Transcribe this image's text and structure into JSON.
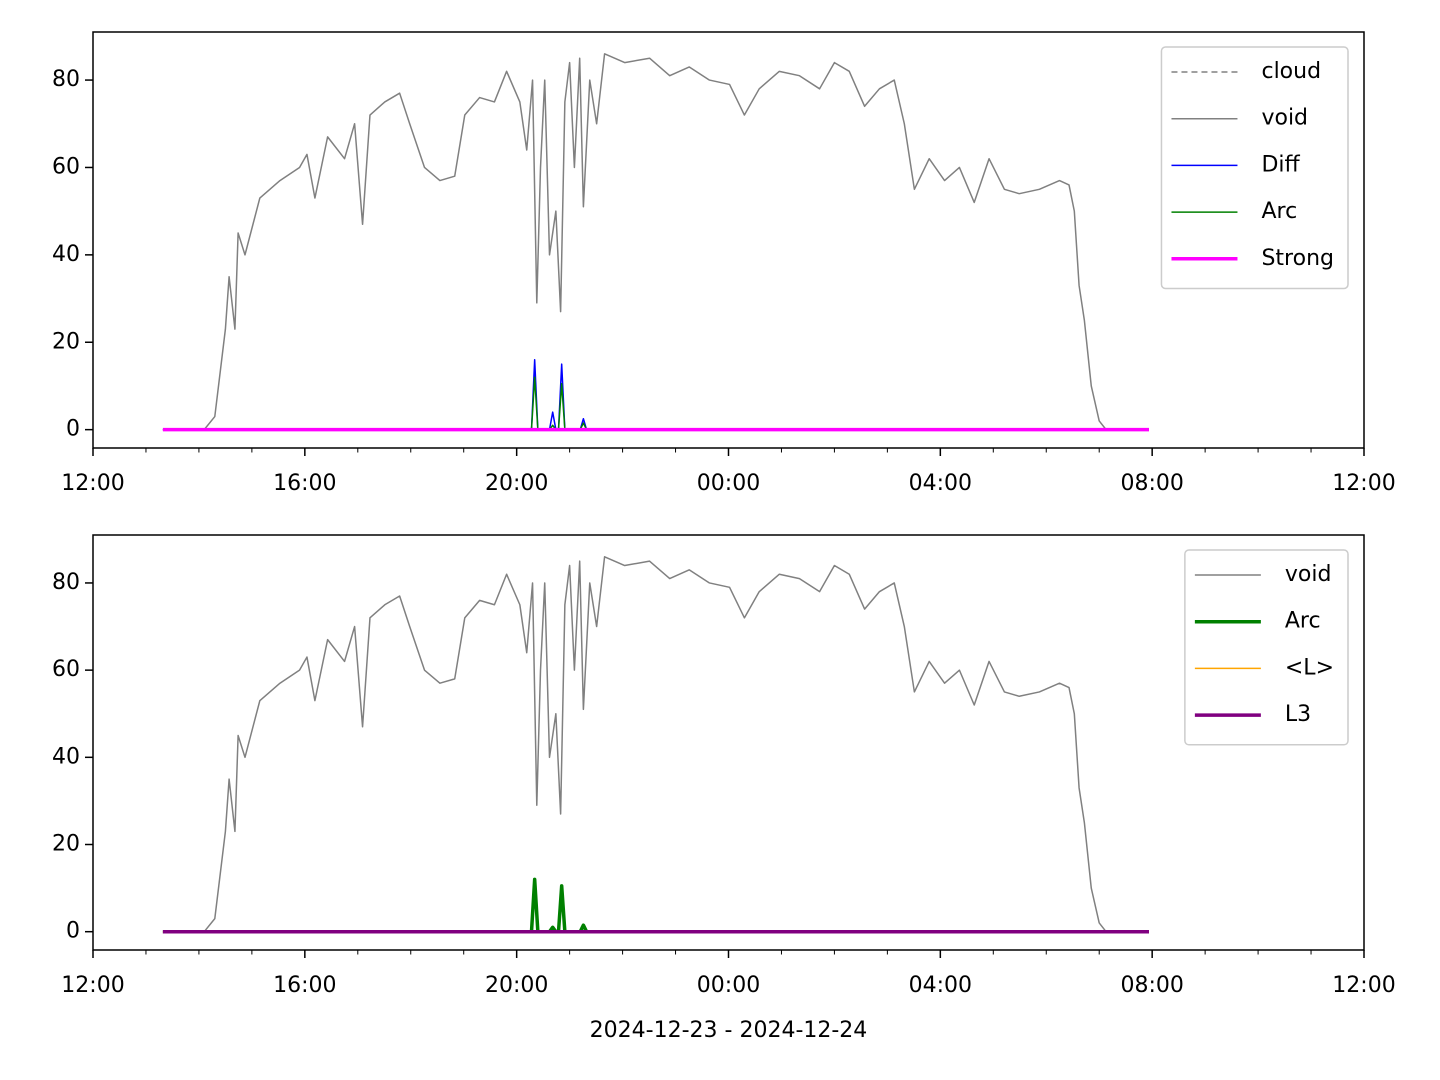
{
  "chart_data": [
    {
      "type": "line",
      "legend": "upper right",
      "xlim": [
        0,
        24
      ],
      "ylim": [
        -4.2,
        91
      ],
      "xticks": [
        {
          "value": 0,
          "label": "12:00"
        },
        {
          "value": 4,
          "label": "16:00"
        },
        {
          "value": 8,
          "label": "20:00"
        },
        {
          "value": 12,
          "label": "00:00"
        },
        {
          "value": 16,
          "label": "04:00"
        },
        {
          "value": 20,
          "label": "08:00"
        },
        {
          "value": 24,
          "label": "12:00"
        }
      ],
      "yticks": [
        0,
        20,
        40,
        60,
        80
      ],
      "series": [
        {
          "name": "cloud",
          "color": "#808080",
          "linestyle": "dashed",
          "linewidth": 1.5,
          "x": [],
          "values": []
        },
        {
          "name": "void",
          "color": "#808080",
          "linestyle": "solid",
          "linewidth": 1.5,
          "x": [
            1.32,
            2.1,
            2.3,
            2.5,
            2.57,
            2.68,
            2.74,
            2.87,
            3.15,
            3.53,
            3.9,
            4.04,
            4.19,
            4.43,
            4.75,
            4.94,
            5.09,
            5.23,
            5.51,
            5.79,
            5.98,
            6.26,
            6.55,
            6.83,
            7.02,
            7.3,
            7.58,
            7.81,
            8.06,
            8.19,
            8.3,
            8.38,
            8.45,
            8.53,
            8.62,
            8.74,
            8.83,
            8.91,
            9.0,
            9.09,
            9.19,
            9.26,
            9.38,
            9.51,
            9.66,
            10.04,
            10.51,
            10.89,
            11.26,
            11.64,
            12.02,
            12.3,
            12.58,
            12.96,
            13.34,
            13.72,
            14.0,
            14.28,
            14.57,
            14.85,
            15.13,
            15.32,
            15.51,
            15.79,
            16.08,
            16.36,
            16.64,
            16.92,
            17.21,
            17.49,
            17.87,
            18.25,
            18.43,
            18.53,
            18.62,
            18.72,
            18.85,
            19.0,
            19.13,
            19.94
          ],
          "values": [
            0,
            0,
            3,
            23,
            35,
            23,
            45,
            40,
            53,
            57,
            60,
            63,
            53,
            67,
            62,
            70,
            47,
            72,
            75,
            77,
            70,
            60,
            57,
            58,
            72,
            76,
            75,
            82,
            75,
            64,
            80,
            29,
            60,
            80,
            40,
            50,
            27,
            75,
            84,
            60,
            85,
            51,
            80,
            70,
            86,
            84,
            85,
            81,
            83,
            80,
            79,
            72,
            78,
            82,
            81,
            78,
            84,
            82,
            74,
            78,
            80,
            70,
            55,
            62,
            57,
            60,
            52,
            62,
            55,
            54,
            55,
            57,
            56,
            50,
            33,
            25,
            10,
            2,
            0,
            0
          ]
        },
        {
          "name": "Diff",
          "color": "#0000ff",
          "linestyle": "solid",
          "linewidth": 1.5,
          "x": [
            1.32,
            8.28,
            8.34,
            8.4,
            8.62,
            8.68,
            8.74,
            8.79,
            8.85,
            8.91,
            9.2,
            9.26,
            9.32,
            19.94
          ],
          "values": [
            0,
            0,
            16,
            0,
            0,
            4,
            0,
            0,
            15,
            0,
            0,
            2.5,
            0,
            0
          ]
        },
        {
          "name": "Arc",
          "color": "#008000",
          "linestyle": "solid",
          "linewidth": 1.5,
          "x": [
            1.32,
            8.28,
            8.34,
            8.4,
            8.62,
            8.68,
            8.74,
            8.79,
            8.85,
            8.91,
            9.2,
            9.26,
            9.32,
            19.94
          ],
          "values": [
            0,
            0,
            12,
            0,
            0,
            1,
            0,
            0,
            10.5,
            0,
            0,
            1.5,
            0,
            0
          ]
        },
        {
          "name": "Strong",
          "color": "#ff00ff",
          "linestyle": "solid",
          "linewidth": 3.5,
          "x": [
            1.32,
            19.94
          ],
          "values": [
            0,
            0
          ]
        }
      ]
    },
    {
      "type": "line",
      "legend": "upper right",
      "xlabel": "2024-12-23 - 2024-12-24",
      "xlim": [
        0,
        24
      ],
      "ylim": [
        -4.2,
        91
      ],
      "xticks": [
        {
          "value": 0,
          "label": "12:00"
        },
        {
          "value": 4,
          "label": "16:00"
        },
        {
          "value": 8,
          "label": "20:00"
        },
        {
          "value": 12,
          "label": "00:00"
        },
        {
          "value": 16,
          "label": "04:00"
        },
        {
          "value": 20,
          "label": "08:00"
        },
        {
          "value": 24,
          "label": "12:00"
        }
      ],
      "yticks": [
        0,
        20,
        40,
        60,
        80
      ],
      "series": [
        {
          "name": "void",
          "color": "#808080",
          "linestyle": "solid",
          "linewidth": 1.5,
          "x": [
            1.32,
            2.1,
            2.3,
            2.5,
            2.57,
            2.68,
            2.74,
            2.87,
            3.15,
            3.53,
            3.9,
            4.04,
            4.19,
            4.43,
            4.75,
            4.94,
            5.09,
            5.23,
            5.51,
            5.79,
            5.98,
            6.26,
            6.55,
            6.83,
            7.02,
            7.3,
            7.58,
            7.81,
            8.06,
            8.19,
            8.3,
            8.38,
            8.45,
            8.53,
            8.62,
            8.74,
            8.83,
            8.91,
            9.0,
            9.09,
            9.19,
            9.26,
            9.38,
            9.51,
            9.66,
            10.04,
            10.51,
            10.89,
            11.26,
            11.64,
            12.02,
            12.3,
            12.58,
            12.96,
            13.34,
            13.72,
            14.0,
            14.28,
            14.57,
            14.85,
            15.13,
            15.32,
            15.51,
            15.79,
            16.08,
            16.36,
            16.64,
            16.92,
            17.21,
            17.49,
            17.87,
            18.25,
            18.43,
            18.53,
            18.62,
            18.72,
            18.85,
            19.0,
            19.13,
            19.94
          ],
          "values": [
            0,
            0,
            3,
            23,
            35,
            23,
            45,
            40,
            53,
            57,
            60,
            63,
            53,
            67,
            62,
            70,
            47,
            72,
            75,
            77,
            70,
            60,
            57,
            58,
            72,
            76,
            75,
            82,
            75,
            64,
            80,
            29,
            60,
            80,
            40,
            50,
            27,
            75,
            84,
            60,
            85,
            51,
            80,
            70,
            86,
            84,
            85,
            81,
            83,
            80,
            79,
            72,
            78,
            82,
            81,
            78,
            84,
            82,
            74,
            78,
            80,
            70,
            55,
            62,
            57,
            60,
            52,
            62,
            55,
            54,
            55,
            57,
            56,
            50,
            33,
            25,
            10,
            2,
            0,
            0
          ]
        },
        {
          "name": "Arc",
          "color": "#008000",
          "linestyle": "solid",
          "linewidth": 3.5,
          "x": [
            1.32,
            8.28,
            8.34,
            8.4,
            8.62,
            8.68,
            8.74,
            8.79,
            8.85,
            8.91,
            9.2,
            9.26,
            9.32,
            19.94
          ],
          "values": [
            0,
            0,
            12,
            0,
            0,
            1,
            0,
            0,
            10.5,
            0,
            0,
            1.5,
            0,
            0
          ]
        },
        {
          "name": "<L>",
          "color": "#ffa500",
          "linestyle": "solid",
          "linewidth": 1.5,
          "x": [
            1.32,
            19.94
          ],
          "values": [
            0,
            0
          ]
        },
        {
          "name": "L3",
          "color": "#800080",
          "linestyle": "solid",
          "linewidth": 3.5,
          "x": [
            1.32,
            19.94
          ],
          "values": [
            0,
            0
          ]
        }
      ]
    }
  ]
}
